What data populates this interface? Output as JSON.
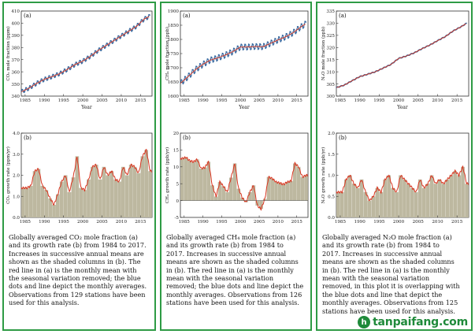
{
  "panels": [
    {
      "caption": "Globally averaged CO₂ mole fraction (a)\nand its growth rate (b) from 1984 to 2017.\nIncreases in successive annual means are\nshown as the shaded columns in (b). The\nred line in (a) is the monthly mean with\nthe seasonal variation removed; the blue\ndots and line depict the monthly averages.\nObservations from 129 stations have been\nused for this analysis.",
      "top": {
        "panel_label": "(a)",
        "ylabel": "CO₂ mole fraction (ppm)",
        "xlabel": "Year",
        "yticks": [
          "340",
          "350",
          "360",
          "370",
          "380",
          "390",
          "400",
          "410"
        ],
        "xticks": [
          "1985",
          "1990",
          "1995",
          "2000",
          "2005",
          "2010",
          "2015"
        ]
      },
      "bottom": {
        "panel_label": "(b)",
        "ylabel": "CO₂ growth rate (ppm/yr)",
        "xlabel": "",
        "yticks": [
          "0.0",
          "1.0",
          "2.0",
          "3.0",
          "4.0"
        ],
        "xticks": [
          "1985",
          "1990",
          "1995",
          "2000",
          "2005",
          "2010",
          "2015"
        ]
      }
    },
    {
      "caption": "Globally averaged CH₄ mole fraction (a)\nand its growth rate (b) from 1984 to\n2017. Increases in successive annual\nmeans are shown as the shaded columns\nin (b). The red line in (a) is the monthly\nmean with the seasonal variation\nremoved; the blue dots and line depict the\nmonthly averages. Observations from 126\nstations have been used for this analysis.",
      "top": {
        "panel_label": "(a)",
        "ylabel": "CH₄ mole fraction (ppb)",
        "xlabel": "Year",
        "yticks": [
          "1600",
          "1650",
          "1700",
          "1750",
          "1800",
          "1850",
          "1900"
        ],
        "xticks": [
          "1985",
          "1990",
          "1995",
          "2000",
          "2005",
          "2010",
          "2015"
        ]
      },
      "bottom": {
        "panel_label": "(b)",
        "ylabel": "CH₄ growth rate (ppb/yr)",
        "xlabel": "",
        "yticks": [
          "-5",
          "0",
          "5",
          "10",
          "15",
          "20"
        ],
        "xticks": [
          "1985",
          "1990",
          "1995",
          "2000",
          "2005",
          "2010",
          "2015"
        ]
      }
    },
    {
      "caption": "Globally averaged N₂O mole fraction (a)\nand its growth rate (b) from 1984 to\n2017. Increases in successive annual\nmeans are shown as the shaded columns\nin (b). The red line in (a) is the monthly\nmean with the seasonal variation\nremoved, in this plot it is overlapping with\nthe blue dots and line that depict the\nmonthly averages. Observations from 125\nstations have been used for this analysis.",
      "top": {
        "panel_label": "(a)",
        "ylabel": "N₂O mole fraction (ppb)",
        "xlabel": "Year",
        "yticks": [
          "300",
          "305",
          "310",
          "315",
          "320",
          "325",
          "330",
          "335"
        ],
        "xticks": [
          "1985",
          "1990",
          "1995",
          "2000",
          "2005",
          "2010",
          "2015"
        ]
      },
      "bottom": {
        "panel_label": "(b)",
        "ylabel": "N₂O growth rate (ppb/yr)",
        "xlabel": "",
        "yticks": [
          "0.0",
          "0.5",
          "1.0",
          "1.5",
          "2.0"
        ],
        "xticks": [
          "1985",
          "1990",
          "1995",
          "2000",
          "2005",
          "2010",
          "2015"
        ]
      }
    }
  ],
  "watermark": {
    "logo": "h",
    "text": "tanpaifang.com"
  },
  "colors": {
    "frame": "#2e9b45",
    "trend": "#d9341f",
    "monthly": "#3a6aa0",
    "shade": "#bdb8a0",
    "shade_edge": "#9c967c"
  },
  "chart_data": [
    {
      "type": "line",
      "title": "",
      "xlabel": "Year",
      "ylabel": "CO₂ mole fraction (ppm)",
      "xlim": [
        1984,
        2018
      ],
      "ylim": [
        340,
        410
      ],
      "series": [
        {
          "name": "",
          "x": [
            1984,
            1986,
            1988,
            1990,
            1992,
            1994,
            1996,
            1998,
            2000,
            2002,
            2004,
            2006,
            2008,
            2010,
            2012,
            2014,
            2016,
            2017.5
          ],
          "values": [
            343.5,
            346.5,
            350.5,
            353.8,
            356.0,
            358.5,
            362.0,
            366.0,
            368.8,
            372.8,
            377.5,
            381.5,
            385.5,
            389.5,
            393.5,
            397.5,
            403.5,
            405.8
          ]
        }
      ],
      "seasonal_amplitude": 1.6
    },
    {
      "type": "area",
      "title": "",
      "xlabel": "",
      "ylabel": "CO₂ growth rate (ppm/yr)",
      "xlim": [
        1984,
        2018
      ],
      "ylim": [
        0,
        4
      ],
      "series": [
        {
          "name": "",
          "x": [
            1984,
            1985,
            1986,
            1987,
            1988,
            1989,
            1990,
            1991,
            1992,
            1993,
            1994,
            1995,
            1996,
            1997,
            1998,
            1999,
            2000,
            2001,
            2002,
            2003,
            2004,
            2005,
            2006,
            2007,
            2008,
            2009,
            2010,
            2011,
            2012,
            2013,
            2014,
            2015,
            2016,
            2017
          ],
          "values": [
            1.4,
            1.4,
            1.5,
            2.2,
            2.3,
            1.5,
            1.3,
            0.9,
            0.6,
            1.1,
            1.7,
            2.0,
            1.2,
            1.9,
            2.9,
            1.4,
            1.3,
            1.8,
            2.4,
            2.5,
            1.8,
            2.4,
            2.0,
            2.2,
            1.8,
            1.7,
            2.4,
            2.0,
            2.5,
            2.4,
            2.1,
            2.9,
            3.2,
            2.2
          ]
        }
      ]
    },
    {
      "type": "line",
      "title": "",
      "xlabel": "Year",
      "ylabel": "CH₄ mole fraction (ppb)",
      "xlim": [
        1984,
        2018
      ],
      "ylim": [
        1600,
        1900
      ],
      "series": [
        {
          "name": "",
          "x": [
            1984,
            1986,
            1988,
            1990,
            1992,
            1994,
            1996,
            1998,
            2000,
            2002,
            2004,
            2006,
            2008,
            2010,
            2012,
            2014,
            2016,
            2017.5
          ],
          "values": [
            1645,
            1668,
            1693,
            1712,
            1727,
            1735,
            1745,
            1757,
            1773,
            1773,
            1775,
            1774,
            1786,
            1798,
            1809,
            1823,
            1843,
            1856
          ]
        }
      ],
      "seasonal_amplitude": 10
    },
    {
      "type": "area",
      "title": "",
      "xlabel": "",
      "ylabel": "CH₄ growth rate (ppb/yr)",
      "xlim": [
        1984,
        2018
      ],
      "ylim": [
        -5,
        20
      ],
      "series": [
        {
          "name": "",
          "x": [
            1984,
            1985,
            1986,
            1987,
            1988,
            1989,
            1990,
            1991,
            1992,
            1993,
            1994,
            1995,
            1996,
            1997,
            1998,
            1999,
            2000,
            2001,
            2002,
            2003,
            2004,
            2005,
            2006,
            2007,
            2008,
            2009,
            2010,
            2011,
            2012,
            2013,
            2014,
            2015,
            2016,
            2017
          ],
          "values": [
            12.5,
            12.8,
            11.8,
            11.5,
            12.2,
            9.5,
            9.8,
            11.5,
            4.5,
            1.2,
            5.5,
            4.2,
            2.5,
            6.8,
            11.0,
            3.5,
            0.8,
            -0.5,
            2.5,
            4.5,
            -1.5,
            -2.5,
            0.5,
            7.0,
            6.5,
            5.5,
            5.2,
            4.8,
            5.5,
            5.8,
            11.0,
            10.0,
            7.0,
            7.5
          ]
        }
      ]
    },
    {
      "type": "line",
      "title": "",
      "xlabel": "Year",
      "ylabel": "N₂O mole fraction (ppb)",
      "xlim": [
        1984,
        2018
      ],
      "ylim": [
        300,
        335
      ],
      "series": [
        {
          "name": "",
          "x": [
            1984,
            1986,
            1988,
            1990,
            1992,
            1994,
            1996,
            1998,
            2000,
            2002,
            2004,
            2006,
            2008,
            2010,
            2012,
            2014,
            2016,
            2017.5
          ],
          "values": [
            303.5,
            304.5,
            306.3,
            308.0,
            309.0,
            310.0,
            311.5,
            313.0,
            315.5,
            316.5,
            317.8,
            319.5,
            321.0,
            322.8,
            324.5,
            326.8,
            328.5,
            330.0
          ]
        }
      ],
      "seasonal_amplitude": 0.15
    },
    {
      "type": "area",
      "title": "",
      "xlabel": "",
      "ylabel": "N₂O growth rate (ppb/yr)",
      "xlim": [
        1984,
        2018
      ],
      "ylim": [
        0,
        2
      ],
      "series": [
        {
          "name": "",
          "x": [
            1984,
            1985,
            1986,
            1987,
            1988,
            1989,
            1990,
            1991,
            1992,
            1993,
            1994,
            1995,
            1996,
            1997,
            1998,
            1999,
            2000,
            2001,
            2002,
            2003,
            2004,
            2005,
            2006,
            2007,
            2008,
            2009,
            2010,
            2011,
            2012,
            2013,
            2014,
            2015,
            2016,
            2017
          ],
          "values": [
            0.6,
            0.6,
            0.9,
            1.0,
            0.8,
            0.7,
            0.9,
            0.6,
            0.4,
            0.5,
            0.7,
            0.6,
            0.9,
            1.0,
            0.7,
            0.6,
            1.0,
            0.9,
            0.8,
            0.7,
            0.6,
            0.9,
            0.7,
            0.8,
            1.0,
            0.8,
            0.9,
            0.8,
            0.9,
            1.0,
            1.1,
            1.0,
            1.2,
            0.8
          ]
        }
      ]
    }
  ]
}
